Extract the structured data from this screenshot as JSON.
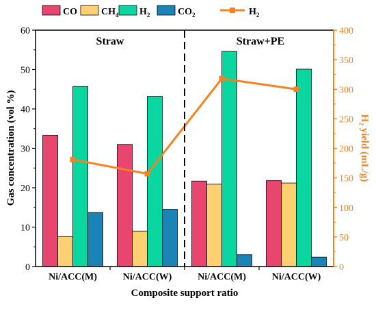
{
  "chart_data": {
    "type": "bar",
    "categories": [
      "Ni/ACC(M)",
      "Ni/ACC(W)",
      "Ni/ACC(M)",
      "Ni/ACC(W)"
    ],
    "groups": [
      "Straw",
      "Straw+PE"
    ],
    "xlabel": "Composite support ratio",
    "ylabel": "Gas concentration (vol %)",
    "y2label": "H₂ yield (mL/g)",
    "ylim": [
      0,
      60
    ],
    "yticks": [
      0,
      10,
      20,
      30,
      40,
      50,
      60
    ],
    "y2lim": [
      0,
      400
    ],
    "y2ticks": [
      0,
      50,
      100,
      150,
      200,
      250,
      300,
      350,
      400
    ],
    "grid": false,
    "legend_position": "top",
    "series": [
      {
        "name": "CO",
        "label_main": "CO",
        "label_sub": "",
        "color": "#e8466e",
        "values": [
          33.3,
          31.0,
          21.7,
          21.8
        ]
      },
      {
        "name": "CH4",
        "label_main": "CH",
        "label_sub": "4",
        "color": "#ffd071",
        "values": [
          7.6,
          9.0,
          20.9,
          21.2
        ]
      },
      {
        "name": "H2",
        "label_main": "H",
        "label_sub": "2",
        "color": "#0ad6a0",
        "values": [
          45.7,
          43.2,
          54.6,
          50.1
        ]
      },
      {
        "name": "CO2",
        "label_main": "CO",
        "label_sub": "2",
        "color": "#1a84b6",
        "values": [
          13.7,
          14.5,
          3.0,
          2.4
        ]
      }
    ],
    "line_series": {
      "name": "H2",
      "label_main": "H",
      "label_sub": "2",
      "color": "#f58220",
      "values": [
        181,
        157,
        318,
        300
      ]
    }
  }
}
